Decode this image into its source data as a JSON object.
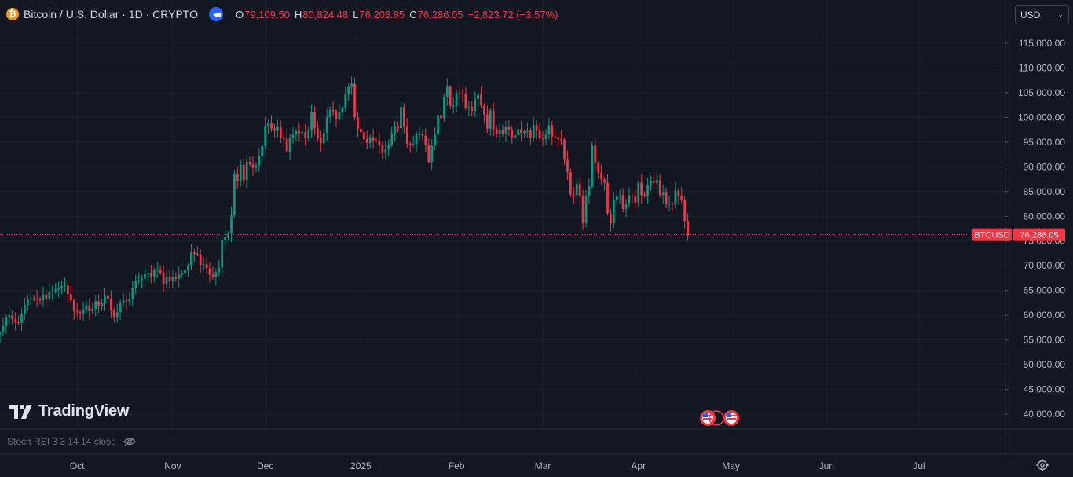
{
  "header": {
    "symbol_title": "Bitcoin / U.S. Dollar · 1D · CRYPTO",
    "coin_glyph": "₿",
    "ohlc": [
      {
        "label": "O",
        "value": "79,109.50"
      },
      {
        "label": "H",
        "value": "80,824.48"
      },
      {
        "label": "L",
        "value": "76,208.85"
      },
      {
        "label": "C",
        "value": "76,286.05"
      }
    ],
    "change": "−2,823.72 (−3.57%)"
  },
  "currency": {
    "label": "USD"
  },
  "logo": {
    "text": "TradingView"
  },
  "indicator": {
    "text": "Stoch RSI 3 3 14 14 close"
  },
  "price_tag": {
    "symbol": "BTCUSD",
    "price": "76,286.05"
  },
  "colors": {
    "background": "#131722",
    "grid": "#1e222d",
    "up": "#089981",
    "down": "#f23645",
    "text": "#b2b5be"
  },
  "chart_data": {
    "type": "candlestick",
    "last_price": 76286.05,
    "y_tick_labels": [
      "115,000.00",
      "110,000.00",
      "105,000.00",
      "100,000.00",
      "95,000.00",
      "90,000.00",
      "85,000.00",
      "80,000.00",
      "75,000.00",
      "70,000.00",
      "65,000.00",
      "60,000.00",
      "55,000.00",
      "50,000.00",
      "45,000.00",
      "40,000.00"
    ],
    "y_ticks": [
      115000,
      110000,
      105000,
      100000,
      95000,
      90000,
      85000,
      80000,
      75000,
      70000,
      65000,
      60000,
      55000,
      50000,
      45000,
      40000
    ],
    "ylim": [
      37000,
      118000
    ],
    "x_axis": [
      "Oct",
      "Nov",
      "Dec",
      "2025",
      "Feb",
      "Mar",
      "Apr",
      "May",
      "Jun",
      "Jul"
    ],
    "x_axis_dates": [
      "2024-10-01",
      "2024-11-01",
      "2024-12-01",
      "2025-01-01",
      "2025-02-01",
      "2025-03-01",
      "2025-04-01",
      "2025-05-01",
      "2025-06-01",
      "2025-07-01"
    ],
    "x_range_dates": [
      "2024-09-06",
      "2025-07-29"
    ],
    "closes": {
      "start_date": "2024-09-06",
      "values": [
        56500,
        57800,
        59500,
        60000,
        59200,
        58600,
        58500,
        60200,
        62100,
        63200,
        63500,
        63400,
        63300,
        63000,
        64200,
        63400,
        64700,
        64900,
        65200,
        65500,
        65900,
        66000,
        64300,
        63000,
        60800,
        60600,
        60400,
        61100,
        62000,
        60800,
        61300,
        62800,
        61800,
        62500,
        63900,
        63300,
        61000,
        59700,
        60600,
        62400,
        63000,
        62800,
        63300,
        65600,
        67000,
        67100,
        67400,
        68300,
        68500,
        67700,
        69100,
        69200,
        68600,
        66400,
        67800,
        66900,
        67700,
        67400,
        68200,
        68500,
        69100,
        70100,
        72700,
        72400,
        72300,
        70200,
        70300,
        69500,
        68200,
        67700,
        68700,
        69600,
        75300,
        75900,
        76500,
        80300,
        88600,
        87200,
        90400,
        87300,
        91000,
        90500,
        89800,
        90300,
        92200,
        94200,
        98300,
        98900,
        97700,
        97300,
        98100,
        95800,
        95700,
        93100,
        95800,
        96500,
        97200,
        96800,
        97000,
        95900,
        97300,
        101100,
        97800,
        95900,
        94800,
        96800,
        100000,
        101500,
        101300,
        99700,
        101100,
        102000,
        104600,
        106100,
        106800,
        100000,
        97700,
        97000,
        95600,
        94800,
        96000,
        95400,
        95300,
        94300,
        92800,
        93600,
        94500,
        96800,
        98000,
        97800,
        102100,
        98200,
        94700,
        94500,
        94600,
        96600,
        96600,
        96300,
        94500,
        91000,
        94300,
        96700,
        100500,
        99800,
        104100,
        106200,
        102300,
        102300,
        104900,
        104800,
        104700,
        101800,
        102100,
        101300,
        103700,
        104600,
        102400,
        100600,
        97700,
        101400,
        97600,
        96600,
        97400,
        96600,
        98000,
        97400,
        95800,
        96400,
        97600,
        96800,
        97200,
        97300,
        95800,
        98400,
        97300,
        95900,
        95600,
        96500,
        98400,
        96100,
        96000,
        95600,
        95500,
        91600,
        88900,
        84400,
        84300,
        86600,
        84000,
        78600,
        84200,
        86000,
        94300,
        90700,
        88800,
        87400,
        86800,
        80600,
        78600,
        83400,
        84000,
        84300,
        81500,
        82600,
        84200,
        84000,
        82800,
        86800,
        84300,
        84100,
        86200,
        87200,
        86800,
        87300,
        84300,
        84900,
        82400,
        82500,
        82400,
        85200,
        84200,
        83200,
        79100,
        76300
      ]
    }
  }
}
